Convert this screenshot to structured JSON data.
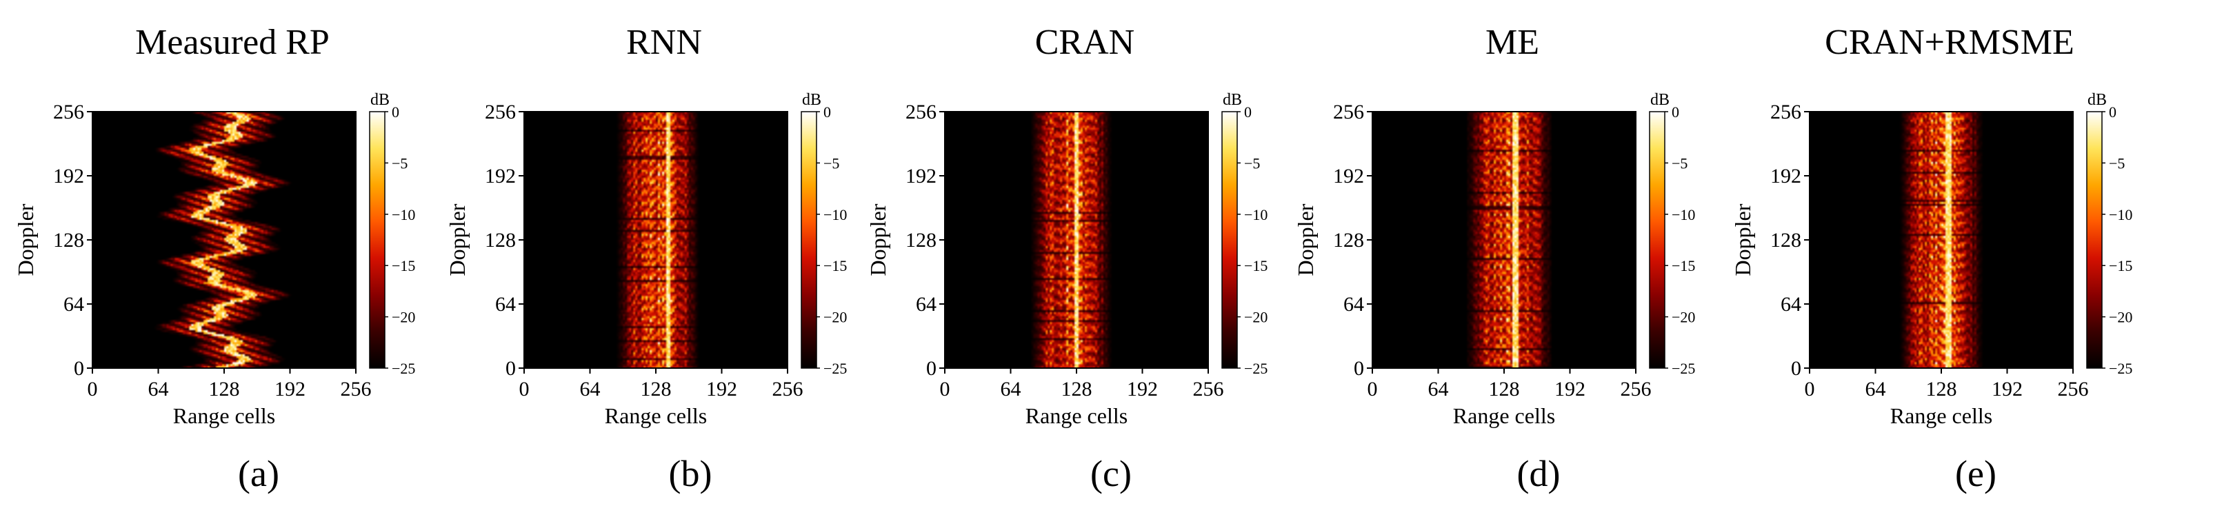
{
  "figure": {
    "colorbar_unit": "dB",
    "colorbar_ticks": [
      0,
      -5,
      -10,
      -15,
      -20,
      -25
    ],
    "colormap": [
      "#000000",
      "#3a0000",
      "#8a0000",
      "#d41000",
      "#ff5a00",
      "#ffa600",
      "#ffe45a",
      "#ffffff"
    ]
  },
  "chart_data": [
    {
      "type": "heatmap",
      "title": "Measured RP",
      "label": "(a)",
      "xlabel": "Range cells",
      "ylabel": "Doppler",
      "xticks": [
        0,
        64,
        128,
        192,
        256
      ],
      "yticks": [
        0,
        64,
        128,
        192,
        256
      ],
      "xlim": [
        0,
        256
      ],
      "ylim": [
        0,
        256
      ],
      "clim": [
        -25,
        0
      ],
      "pattern": "zigzag",
      "band_center": 125,
      "band_width": 80
    },
    {
      "type": "heatmap",
      "title": "RNN",
      "label": "(b)",
      "xlabel": "Range cells",
      "ylabel": "Doppler",
      "xticks": [
        0,
        64,
        128,
        192,
        256
      ],
      "yticks": [
        0,
        64,
        128,
        192,
        256
      ],
      "xlim": [
        0,
        256
      ],
      "ylim": [
        0,
        256
      ],
      "clim": [
        -25,
        0
      ],
      "pattern": "vertical",
      "band_center": 129,
      "band_width": 80,
      "bright_line": 139
    },
    {
      "type": "heatmap",
      "title": "CRAN",
      "label": "(c)",
      "xlabel": "Range cells",
      "ylabel": "Doppler",
      "xticks": [
        0,
        64,
        128,
        192,
        256
      ],
      "yticks": [
        0,
        64,
        128,
        192,
        256
      ],
      "xlim": [
        0,
        256
      ],
      "ylim": [
        0,
        256
      ],
      "clim": [
        -25,
        0
      ],
      "pattern": "vertical",
      "band_center": 122,
      "band_width": 78,
      "bright_line": 127
    },
    {
      "type": "heatmap",
      "title": "ME",
      "label": "(d)",
      "xlabel": "Range cells",
      "ylabel": "Doppler",
      "xticks": [
        0,
        64,
        128,
        192,
        256
      ],
      "yticks": [
        0,
        64,
        128,
        192,
        256
      ],
      "xlim": [
        0,
        256
      ],
      "ylim": [
        0,
        256
      ],
      "clim": [
        -25,
        0
      ],
      "pattern": "vertical",
      "band_center": 132,
      "band_width": 84,
      "bright_line": 138
    },
    {
      "type": "heatmap",
      "title": "CRAN+RMSME",
      "label": "(e)",
      "xlabel": "Range cells",
      "ylabel": "Doppler",
      "xticks": [
        0,
        64,
        128,
        192,
        256
      ],
      "yticks": [
        0,
        64,
        128,
        192,
        256
      ],
      "xlim": [
        0,
        256
      ],
      "ylim": [
        0,
        256
      ],
      "clim": [
        -25,
        0
      ],
      "pattern": "vertical",
      "band_center": 127,
      "band_width": 80,
      "bright_line": 134
    }
  ]
}
